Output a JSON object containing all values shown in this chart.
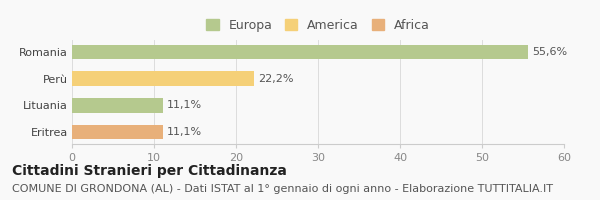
{
  "categories": [
    "Romania",
    "Perù",
    "Lituania",
    "Eritrea"
  ],
  "values": [
    55.6,
    22.2,
    11.1,
    11.1
  ],
  "labels": [
    "55,6%",
    "22,2%",
    "11,1%",
    "11,1%"
  ],
  "colors": [
    "#b5c98e",
    "#f5d078",
    "#b5c98e",
    "#e8b07a"
  ],
  "bar_colors_legend": [
    "#b5c98e",
    "#f5d078",
    "#e8b07a"
  ],
  "legend_labels": [
    "Europa",
    "America",
    "Africa"
  ],
  "xlim": [
    0,
    60
  ],
  "xticks": [
    0,
    10,
    20,
    30,
    40,
    50,
    60
  ],
  "title": "Cittadini Stranieri per Cittadinanza",
  "subtitle": "COMUNE DI GRONDONA (AL) - Dati ISTAT al 1° gennaio di ogni anno - Elaborazione TUTTITALIA.IT",
  "background_color": "#f9f9f9",
  "bar_height": 0.55,
  "title_fontsize": 10,
  "subtitle_fontsize": 8,
  "legend_fontsize": 9,
  "tick_fontsize": 8,
  "label_fontsize": 8
}
